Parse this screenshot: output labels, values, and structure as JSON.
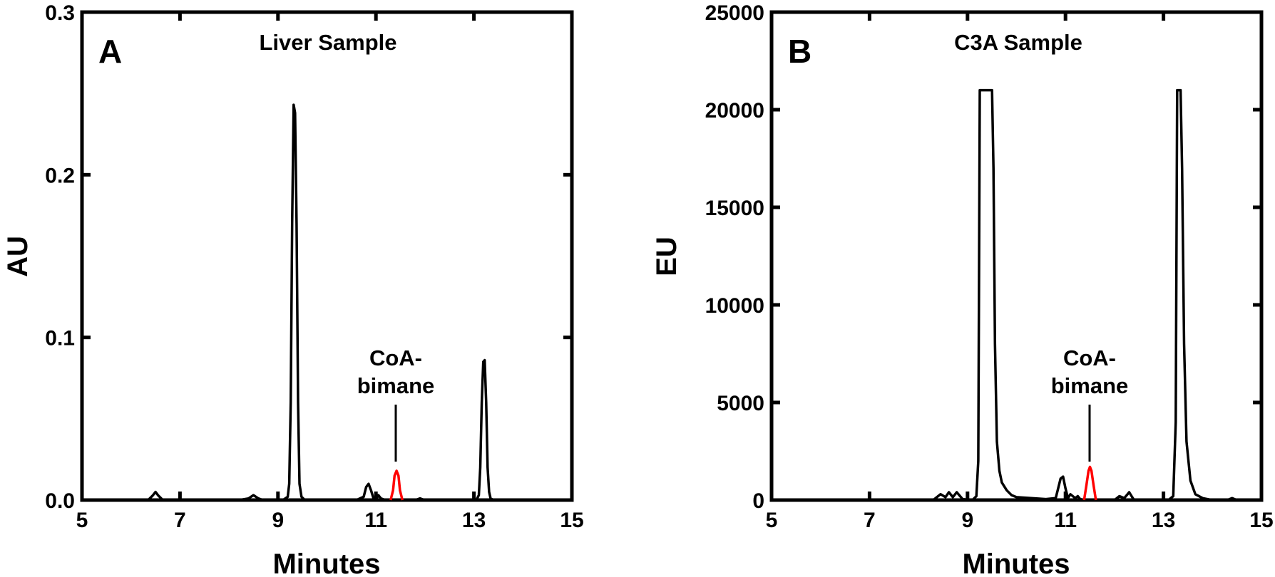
{
  "colors": {
    "trace": "#000000",
    "highlight": "#ff0000",
    "background": "#ffffff"
  },
  "chart_data": [
    {
      "type": "line",
      "panel_letter": "A",
      "title": "Liver Sample",
      "xlabel": "Minutes",
      "ylabel": "AU",
      "xlim": [
        5,
        15
      ],
      "ylim": [
        0,
        0.3
      ],
      "xticks": [
        5,
        7,
        9,
        11,
        13,
        15
      ],
      "xtick_labels": [
        "5",
        "7",
        "9",
        "11",
        "13",
        "15"
      ],
      "yticks": [
        0,
        0.1,
        0.2,
        0.3
      ],
      "ytick_labels": [
        "0.0",
        "0.1",
        "0.2",
        "0.3"
      ],
      "annotation": {
        "lines": [
          "CoA-",
          "bimane"
        ],
        "x": 11.42,
        "y": 0.018
      },
      "series": [
        {
          "color": "#000000",
          "x": [
            5.0,
            6.35,
            6.45,
            6.5,
            6.55,
            6.65,
            6.7,
            8.2,
            8.4,
            8.5,
            8.6,
            8.7,
            9.1,
            9.2,
            9.23,
            9.26,
            9.29,
            9.32,
            9.35,
            9.38,
            9.41,
            9.44,
            9.48,
            9.55,
            10.6,
            10.75,
            10.8,
            10.85,
            10.9,
            10.95,
            11.0,
            11.05,
            11.1,
            11.2,
            11.3,
            11.52,
            11.6,
            11.8,
            11.9,
            12.0,
            12.1,
            12.5,
            13.05,
            13.1,
            13.13,
            13.16,
            13.19,
            13.22,
            13.25,
            13.28,
            13.31,
            13.34,
            13.4,
            13.5,
            15.0
          ],
          "y": [
            0.0,
            0.0,
            0.003,
            0.005,
            0.003,
            0.0,
            0.0,
            0.0,
            0.001,
            0.003,
            0.001,
            0.0,
            0.0,
            0.002,
            0.01,
            0.06,
            0.17,
            0.243,
            0.238,
            0.17,
            0.06,
            0.01,
            0.002,
            0.0,
            0.0,
            0.002,
            0.008,
            0.01,
            0.006,
            0.001,
            0.0,
            0.003,
            0.001,
            0.0,
            0.0,
            0.0,
            0.0,
            0.0,
            0.001,
            0.0,
            0.0,
            0.0,
            0.0,
            0.003,
            0.02,
            0.06,
            0.085,
            0.086,
            0.06,
            0.02,
            0.005,
            0.001,
            0.0,
            0.0,
            0.0
          ]
        },
        {
          "color": "#ff0000",
          "x": [
            11.3,
            11.35,
            11.38,
            11.42,
            11.46,
            11.49,
            11.54
          ],
          "y": [
            0.0,
            0.006,
            0.015,
            0.018,
            0.015,
            0.006,
            0.0
          ]
        }
      ]
    },
    {
      "type": "line",
      "panel_letter": "B",
      "title": "C3A Sample",
      "xlabel": "Minutes",
      "ylabel": "EU",
      "xlim": [
        5,
        15
      ],
      "ylim": [
        0,
        25000
      ],
      "xticks": [
        5,
        7,
        9,
        11,
        13,
        15
      ],
      "xtick_labels": [
        "5",
        "7",
        "9",
        "11",
        "13",
        "15"
      ],
      "yticks": [
        0,
        5000,
        10000,
        15000,
        20000,
        25000
      ],
      "ytick_labels": [
        "0",
        "5000",
        "10000",
        "15000",
        "20000",
        "25000"
      ],
      "annotation": {
        "lines": [
          "CoA-",
          "bimane"
        ],
        "x": 11.5,
        "y": 1700
      },
      "series": [
        {
          "color": "#000000",
          "x": [
            5.0,
            8.3,
            8.45,
            8.55,
            8.62,
            8.7,
            8.78,
            8.9,
            9.1,
            9.18,
            9.22,
            9.25,
            9.28,
            9.5,
            9.53,
            9.56,
            9.6,
            9.65,
            9.7,
            9.8,
            9.9,
            10.0,
            10.3,
            10.6,
            10.8,
            10.9,
            10.95,
            11.0,
            11.05,
            11.1,
            11.2,
            11.25,
            11.3,
            11.4,
            11.6,
            12.0,
            12.1,
            12.2,
            12.25,
            12.3,
            12.35,
            12.4,
            12.5,
            13.1,
            13.2,
            13.25,
            13.28,
            13.35,
            13.38,
            13.42,
            13.47,
            13.55,
            13.65,
            13.8,
            14.0,
            14.3,
            14.4,
            14.5,
            15.0
          ],
          "y": [
            0,
            0,
            300,
            150,
            400,
            150,
            400,
            50,
            0,
            200,
            2000,
            21000,
            21000,
            21000,
            17000,
            8000,
            3000,
            1500,
            900,
            500,
            250,
            150,
            100,
            50,
            100,
            1100,
            1200,
            600,
            100,
            300,
            100,
            200,
            50,
            0,
            0,
            0,
            200,
            100,
            250,
            400,
            200,
            0,
            0,
            0,
            200,
            4000,
            21000,
            21000,
            17000,
            8000,
            3000,
            1000,
            300,
            100,
            0,
            0,
            100,
            0,
            0
          ]
        },
        {
          "color": "#ff0000",
          "x": [
            11.38,
            11.43,
            11.47,
            11.5,
            11.53,
            11.57,
            11.62
          ],
          "y": [
            0,
            800,
            1500,
            1700,
            1500,
            800,
            0
          ]
        }
      ]
    }
  ]
}
